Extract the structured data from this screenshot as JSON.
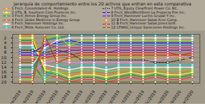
{
  "chart_data": {
    "type": "line",
    "title": "Jerarquía de comportamiento entre los 20 activos que entran en esta comparativa",
    "categories": [
      "ene/2019",
      "feb/2019",
      "mar/2019",
      "abr/2019",
      "may/2019",
      "jun/2019",
      "jul/2019",
      "ago/2019",
      "sep/2019",
      "oct/2019",
      "nov/2019",
      "dic/2019",
      "ene/2020",
      "feb/2020",
      "mar/2020"
    ],
    "series": [
      {
        "name": "1 Fnch_Consolidated Al. Holdings",
        "color": "#ff8800",
        "marker": "square",
        "line_style": "solid",
        "values": [
          1,
          1,
          14,
          15,
          17,
          16,
          16,
          17,
          16,
          15,
          16,
          15,
          16,
          16,
          15
        ]
      },
      {
        "name": "2 UTIL_B. Southern Com Fluences Inc.",
        "color": "#ffff00",
        "marker": "square",
        "line_style": "solid",
        "values": [
          2,
          2,
          15,
          16,
          18,
          17,
          17,
          18,
          17,
          16,
          17,
          16,
          17,
          17,
          16
        ]
      },
      {
        "name": "3 Fnch_Atmos Energy Group Inc.",
        "color": "#00aa00",
        "marker": "square",
        "line_style": "solid",
        "values": [
          3,
          3,
          16,
          17,
          19,
          18,
          18,
          19,
          18,
          17,
          18,
          17,
          18,
          18,
          17
        ]
      },
      {
        "name": "4 Fnch_Globe Medicine in Energy Group",
        "color": "#ff3333",
        "marker": "square",
        "line_style": "solid",
        "values": [
          4,
          4,
          17,
          18,
          20,
          19,
          19,
          20,
          19,
          18,
          19,
          18,
          19,
          19,
          18
        ]
      },
      {
        "name": "5 Fnch_Hannover Holdings Inc.",
        "color": "#ffffff",
        "marker": "square",
        "line_style": "solid",
        "values": [
          5,
          5,
          13,
          14,
          15,
          14,
          14,
          15,
          14,
          14,
          14,
          14,
          14,
          14,
          14
        ]
      },
      {
        "name": "6 Fnch_Mitze Autoceer Co. Ltd.",
        "color": "#00cccc",
        "marker": "square",
        "line_style": "solid",
        "values": [
          6,
          6,
          18,
          13,
          14,
          13,
          13,
          14,
          13,
          13,
          13,
          13,
          13,
          13,
          13
        ]
      },
      {
        "name": "7 UTIL_Equity ClearFront Power Co. NC.",
        "color": "#222222",
        "marker": "square",
        "line_style": "dashed",
        "values": [
          7,
          7,
          8,
          7,
          8,
          11,
          11,
          11,
          11,
          11,
          11,
          12,
          12,
          11,
          10
        ]
      },
      {
        "name": "8 Fnch_WestWestStern La Propecia Fire Inc.",
        "color": "#1111ee",
        "marker": "square",
        "line_style": "solid",
        "values": [
          8,
          8,
          5,
          4,
          3,
          4,
          4,
          4,
          4,
          4,
          4,
          4,
          4,
          4,
          4
        ]
      },
      {
        "name": "9 Fnch_Hannover Luchis Grupal Y Inc.",
        "color": "#7700bb",
        "marker": "square",
        "line_style": "solid",
        "values": [
          9,
          9,
          9,
          8,
          7,
          7,
          7,
          8,
          7,
          7,
          7,
          7,
          7,
          7,
          7
        ]
      },
      {
        "name": "10 B Fnch_Hannover Sabal Acor Comp.",
        "color": "#ddaa00",
        "marker": "square",
        "line_style": "solid",
        "values": [
          10,
          10,
          11,
          10,
          11,
          10,
          10,
          10,
          10,
          10,
          10,
          10,
          10,
          10,
          11
        ]
      },
      {
        "name": "11 B Fnch_Hannover Sabal Jones Grill.",
        "color": "#ee1111",
        "marker": "square",
        "line_style": "solid",
        "values": [
          11,
          11,
          10,
          9,
          9,
          8,
          8,
          8,
          8,
          8,
          8,
          8,
          8,
          9,
          8
        ]
      },
      {
        "name": "12 CFNAG_Unique Sarociones Holdings Inc.",
        "color": "#666600",
        "marker": "square",
        "line_style": "solid",
        "values": [
          12,
          12,
          20,
          20,
          20,
          20,
          20,
          20,
          20,
          20,
          20,
          20,
          20,
          20,
          20
        ]
      },
      {
        "color": "#eeeeee",
        "marker": "circle",
        "line_style": "solid",
        "values": [
          13,
          13,
          6,
          3,
          2,
          2,
          2,
          2,
          2,
          2,
          2,
          2,
          2,
          2,
          2
        ]
      },
      {
        "color": "#0088bb",
        "marker": "square",
        "line_style": "solid",
        "values": [
          14,
          14,
          7,
          5,
          4,
          5,
          5,
          5,
          5,
          5,
          5,
          5,
          5,
          5,
          5
        ]
      },
      {
        "color": "#44ee44",
        "marker": "square",
        "line_style": "solid",
        "values": [
          15,
          15,
          19,
          16,
          16,
          15,
          15,
          16,
          15,
          15,
          15,
          15,
          15,
          15,
          15
        ]
      },
      {
        "color": "#ee88ee",
        "marker": "square",
        "line_style": "solid",
        "values": [
          16,
          16,
          12,
          11,
          12,
          12,
          12,
          12,
          12,
          12,
          12,
          11,
          10,
          9,
          11
        ]
      },
      {
        "color": "#008888",
        "marker": "square",
        "line_style": "solid",
        "values": [
          17,
          17,
          3,
          2,
          1,
          1,
          1,
          1,
          1,
          1,
          1,
          1,
          1,
          1,
          1
        ]
      },
      {
        "color": "#ff0077",
        "marker": "square",
        "line_style": "solid",
        "values": [
          18,
          18,
          4,
          6,
          6,
          6,
          6,
          6,
          6,
          6,
          6,
          6,
          6,
          6,
          6
        ]
      },
      {
        "color": "#88ee00",
        "marker": "square",
        "line_style": "solid",
        "values": [
          19,
          19,
          2,
          1,
          5,
          3,
          3,
          3,
          3,
          3,
          3,
          3,
          3,
          3,
          3
        ]
      },
      {
        "color": "#cc3300",
        "marker": "square",
        "line_style": "solid",
        "values": [
          20,
          20,
          1,
          12,
          10,
          9,
          9,
          9,
          9,
          9,
          9,
          9,
          9,
          9,
          9
        ]
      }
    ],
    "ylim": [
      20.5,
      0.5
    ],
    "yticks": [
      2,
      4,
      6,
      8,
      10,
      12,
      14,
      16,
      18,
      20
    ],
    "grid": true,
    "legend": "top"
  }
}
